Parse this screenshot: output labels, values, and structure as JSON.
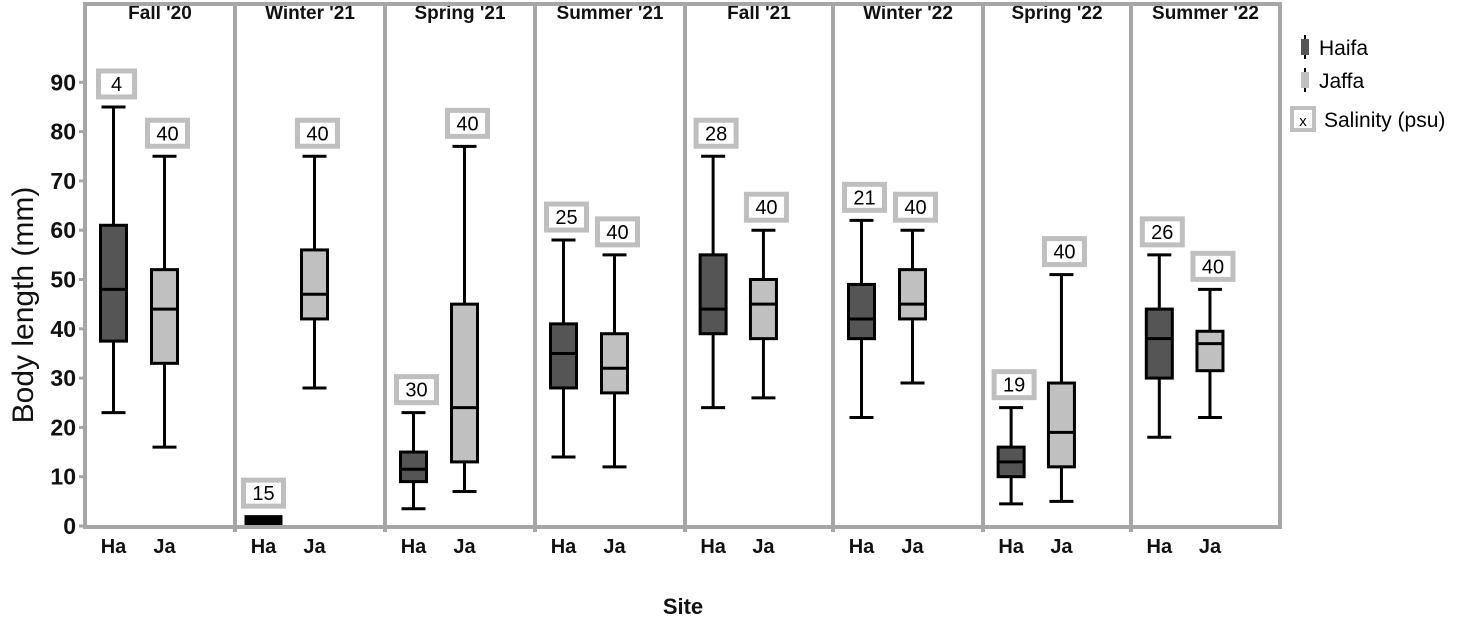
{
  "chart_data": {
    "type": "boxplot",
    "title": "",
    "xlabel": "Site",
    "ylabel": "Body length (mm)",
    "ylim": [
      0,
      99
    ],
    "yticks": [
      0,
      10,
      20,
      30,
      40,
      50,
      60,
      70,
      80,
      90
    ],
    "panels": [
      "Fall '20",
      "Winter '21",
      "Spring '21",
      "Summer '21",
      "Fall '21",
      "Winter '22",
      "Spring '22",
      "Summer '22"
    ],
    "sites": [
      "Ha",
      "Ja"
    ],
    "legend": {
      "position": "right",
      "entries": [
        {
          "label": "Haifa",
          "color": "#555555"
        },
        {
          "label": "Jaffa",
          "color": "#c0c0c0"
        },
        {
          "label": "Salinity (psu)",
          "symbol": "x"
        }
      ]
    },
    "series": [
      {
        "name": "Haifa",
        "site": "Ha",
        "color": "#555555",
        "boxes": [
          {
            "panel": "Fall '20",
            "min": 23,
            "q1": 37.5,
            "median": 48,
            "q3": 61,
            "max": 85,
            "n_label": "4"
          },
          {
            "panel": "Winter '21",
            "min": 0,
            "q1": 0,
            "median": 1,
            "q3": 2,
            "max": 2,
            "n_label": "15"
          },
          {
            "panel": "Spring '21",
            "min": 3.5,
            "q1": 9,
            "median": 11.5,
            "q3": 15,
            "max": 23,
            "n_label": "30"
          },
          {
            "panel": "Summer '21",
            "min": 14,
            "q1": 28,
            "median": 35,
            "q3": 41,
            "max": 58,
            "n_label": "25"
          },
          {
            "panel": "Fall '21",
            "min": 24,
            "q1": 39,
            "median": 44,
            "q3": 55,
            "max": 75,
            "n_label": "28"
          },
          {
            "panel": "Winter '22",
            "min": 22,
            "q1": 38,
            "median": 42,
            "q3": 49,
            "max": 62,
            "n_label": "21"
          },
          {
            "panel": "Spring '22",
            "min": 4.5,
            "q1": 10,
            "median": 13,
            "q3": 16,
            "max": 24,
            "n_label": "19"
          },
          {
            "panel": "Summer '22",
            "min": 18,
            "q1": 30,
            "median": 38,
            "q3": 44,
            "max": 55,
            "n_label": "26"
          }
        ]
      },
      {
        "name": "Jaffa",
        "site": "Ja",
        "color": "#c0c0c0",
        "boxes": [
          {
            "panel": "Fall '20",
            "min": 16,
            "q1": 33,
            "median": 44,
            "q3": 52,
            "max": 75,
            "n_label": "40"
          },
          {
            "panel": "Winter '21",
            "min": 28,
            "q1": 42,
            "median": 47,
            "q3": 56,
            "max": 75,
            "n_label": "40"
          },
          {
            "panel": "Spring '21",
            "min": 7,
            "q1": 13,
            "median": 24,
            "q3": 45,
            "max": 77,
            "n_label": "40"
          },
          {
            "panel": "Summer '21",
            "min": 12,
            "q1": 27,
            "median": 32,
            "q3": 39,
            "max": 55,
            "n_label": "40"
          },
          {
            "panel": "Fall '21",
            "min": 26,
            "q1": 38,
            "median": 45,
            "q3": 50,
            "max": 60,
            "n_label": "40"
          },
          {
            "panel": "Winter '22",
            "min": 29,
            "q1": 42,
            "median": 45,
            "q3": 52,
            "max": 60,
            "n_label": "40"
          },
          {
            "panel": "Spring '22",
            "min": 5,
            "q1": 12,
            "median": 19,
            "q3": 29,
            "max": 51,
            "n_label": "40"
          },
          {
            "panel": "Summer '22",
            "min": 22,
            "q1": 31.5,
            "median": 37,
            "q3": 39.5,
            "max": 48,
            "n_label": "40"
          }
        ]
      }
    ],
    "annotations": "Boxed numbers above each whisker show salinity (psu)"
  },
  "colors": {
    "frame": "#a6a6a6",
    "haifa": "#555555",
    "jaffa": "#c0c0c0",
    "label_box_border": "#bfbfbf"
  }
}
